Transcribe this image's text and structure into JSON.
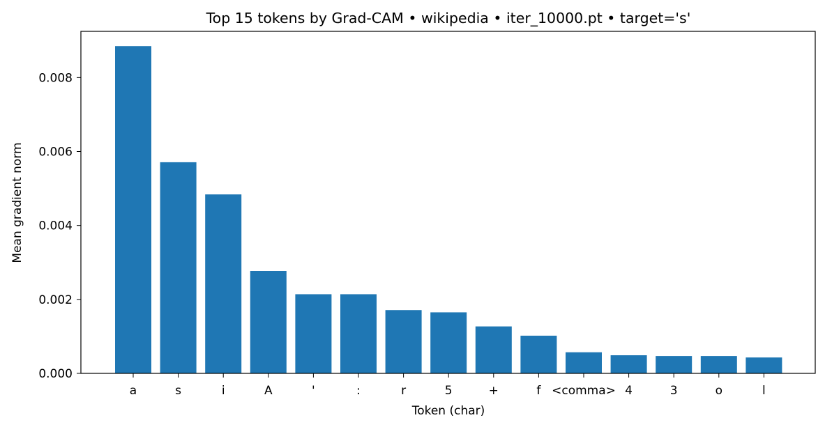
{
  "chart_data": {
    "type": "bar",
    "title": "Top 15 tokens by Grad-CAM • wikipedia • iter_10000.pt • target='s'",
    "xlabel": "Token (char)",
    "ylabel": "Mean gradient norm",
    "categories": [
      "a",
      "s",
      "i",
      "A",
      "'",
      ":",
      "r",
      "5",
      "+",
      "f",
      "<comma>",
      "4",
      "3",
      "o",
      "l"
    ],
    "values": [
      0.00885,
      0.00571,
      0.00484,
      0.00277,
      0.00214,
      0.00214,
      0.00171,
      0.00165,
      0.00127,
      0.00102,
      0.00057,
      0.00049,
      0.00047,
      0.00047,
      0.00043
    ],
    "ylim": [
      0,
      0.00925
    ],
    "yticks": [
      "0.000",
      "0.002",
      "0.004",
      "0.006",
      "0.008"
    ],
    "ytick_values": [
      0,
      0.002,
      0.004,
      0.006,
      0.008
    ],
    "bar_color": "#1f77b4",
    "grid": false,
    "legend": "none"
  }
}
